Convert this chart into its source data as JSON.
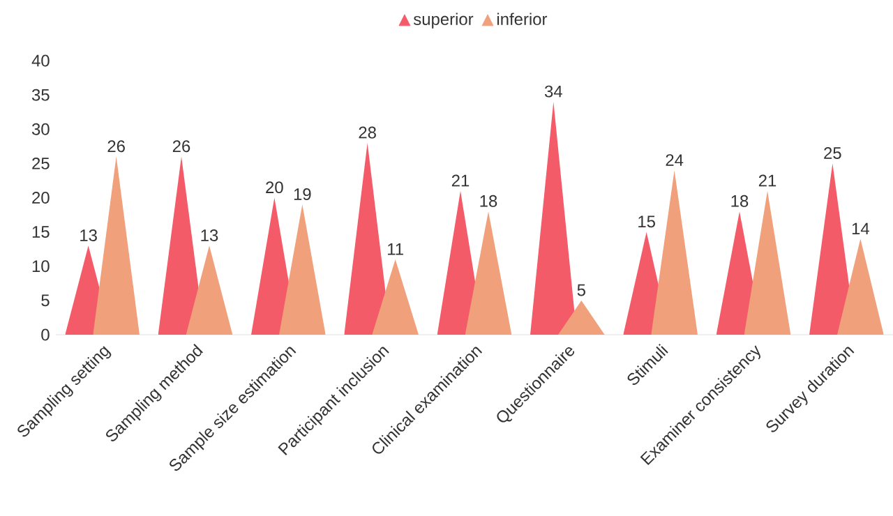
{
  "chart_data": {
    "type": "bar",
    "categories": [
      "Sampling setting",
      "Sampling method",
      "Sample size estimation",
      "Participant inclusion",
      "Clinical examination",
      "Questionnaire",
      "Stimuli",
      "Examiner consistency",
      "Survey duration"
    ],
    "series": [
      {
        "name": "superior",
        "color": "#f45b69",
        "values": [
          13,
          26,
          20,
          28,
          21,
          34,
          15,
          18,
          25
        ]
      },
      {
        "name": "inferior",
        "color": "#f0a07a",
        "values": [
          26,
          13,
          19,
          11,
          18,
          5,
          24,
          21,
          14
        ]
      }
    ],
    "ylim": [
      0,
      40
    ],
    "yticks": [
      0,
      5,
      10,
      15,
      20,
      25,
      30,
      35,
      40
    ],
    "grid": false,
    "legend": "top",
    "data_labels": true
  }
}
